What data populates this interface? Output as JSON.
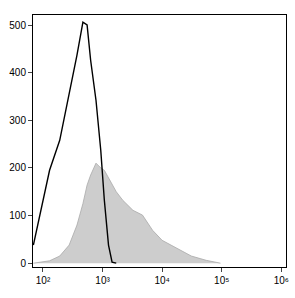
{
  "chart_data": {
    "type": "line",
    "log": "x",
    "grid": false,
    "x": [
      69,
      89,
      129,
      191,
      275,
      372,
      468,
      550,
      631,
      776,
      933,
      1072,
      1259,
      1445,
      1698,
      2188,
      3236,
      4677,
      6918,
      10000,
      17783,
      30903,
      54954,
      95499
    ],
    "series": [
      {
        "type": "area",
        "color": "#aaaaaa",
        "values": [
          0,
          2,
          5,
          15,
          38,
          80,
          125,
          164,
          185,
          210,
          200,
          195,
          180,
          165,
          150,
          132,
          111,
          101,
          69,
          48,
          32,
          15,
          6,
          0
        ]
      },
      {
        "type": "line",
        "color": "#000000",
        "values": [
          38,
          100,
          195,
          258,
          353,
          437,
          506,
          500,
          426,
          342,
          237,
          132,
          38,
          2,
          0,
          null,
          null,
          null,
          null,
          null,
          null,
          null,
          null,
          null
        ]
      }
    ],
    "xlim": [
      68,
      1200000
    ],
    "xticks": [
      {
        "value": 100,
        "label": "10²"
      },
      {
        "value": 1000,
        "label": "10³"
      },
      {
        "value": 10000,
        "label": "10⁴"
      },
      {
        "value": 100000,
        "label": "10⁵"
      },
      {
        "value": 1000000,
        "label": "10⁶"
      }
    ],
    "ylim": [
      -8,
      521
    ],
    "yticks": [
      0,
      100,
      200,
      300,
      400,
      500
    ]
  }
}
